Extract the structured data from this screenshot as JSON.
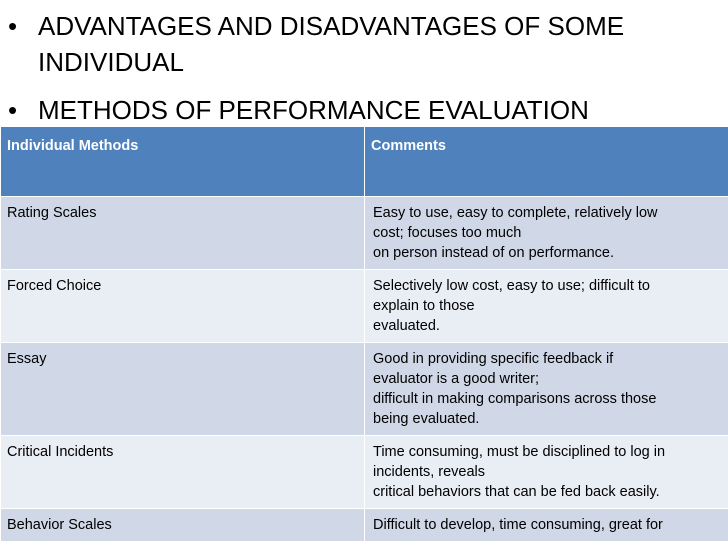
{
  "bullets": [
    {
      "marker": "•",
      "text": "ADVANTAGES AND DISADVANTAGES OF SOME INDIVIDUAL"
    },
    {
      "marker": "•",
      "text": "METHODS OF PERFORMANCE EVALUATION"
    }
  ],
  "table": {
    "headers": [
      "Individual Methods",
      "Comments"
    ],
    "rows": [
      {
        "method": "Rating Scales",
        "comment": [
          "Easy to use, easy to complete, relatively low",
          "cost; focuses too much",
          "on person instead of on performance."
        ]
      },
      {
        "method": "Forced Choice",
        "comment": [
          "Selectively low cost, easy to use; difficult to",
          "explain to those",
          "evaluated."
        ]
      },
      {
        "method": "Essay",
        "comment": [
          "Good in providing specific feedback if",
          "evaluator is a good writer;",
          "difficult in making comparisons across those",
          "being evaluated."
        ]
      },
      {
        "method": "Critical Incidents",
        "comment": [
          "Time consuming, must be disciplined to log in",
          "incidents, reveals",
          "critical behaviors that can be fed back easily."
        ]
      },
      {
        "method": "Behavior Scales",
        "comment": [
          "Difficult to develop, time consuming, great for"
        ]
      }
    ],
    "colors": {
      "header_bg": "#4f81bd",
      "row_odd_bg": "#d0d8e8",
      "row_even_bg": "#e9edf4",
      "header_text": "#ffffff"
    }
  }
}
